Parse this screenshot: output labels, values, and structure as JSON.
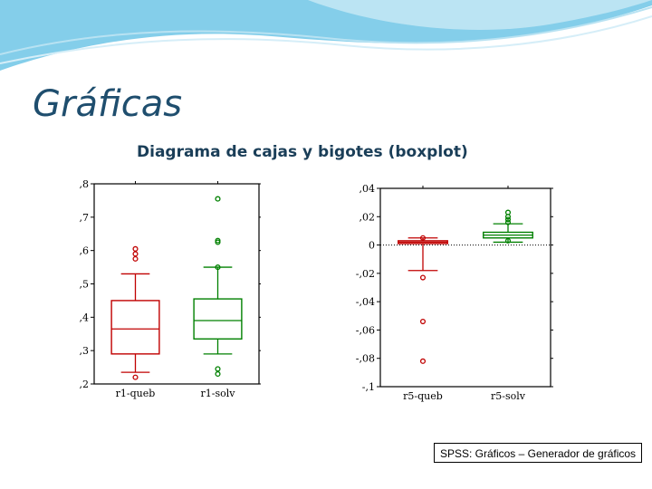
{
  "slide": {
    "title": "Gráficas",
    "subtitle": "Diagrama de cajas y bigotes (boxplot)",
    "caption": "SPSS: Gráficos – Generador de gráficos"
  },
  "colors": {
    "title": "#1f4e6e",
    "decoration": "#6ec6e6",
    "outline_red": "#c00000",
    "outline_green": "#008000"
  },
  "chart_data": [
    {
      "type": "box",
      "title": "",
      "categories": [
        "r1-queb",
        "r1-solv"
      ],
      "ylim": [
        0.2,
        0.8
      ],
      "yticks": [
        ",8",
        ",7",
        ",6",
        ",5",
        ",4",
        ",3",
        ",2"
      ],
      "ytick_values": [
        0.8,
        0.7,
        0.6,
        0.5,
        0.4,
        0.3,
        0.2
      ],
      "boxes": [
        {
          "name": "r1-queb",
          "color": "#c00000",
          "whisker_low": 0.235,
          "q1": 0.29,
          "median": 0.365,
          "q3": 0.45,
          "whisker_high": 0.53,
          "outliers": [
            0.575,
            0.59,
            0.605,
            0.22
          ]
        },
        {
          "name": "r1-solv",
          "color": "#008000",
          "whisker_low": 0.29,
          "q1": 0.335,
          "median": 0.39,
          "q3": 0.455,
          "whisker_high": 0.55,
          "outliers": [
            0.755,
            0.63,
            0.625,
            0.55,
            0.245,
            0.23
          ]
        }
      ]
    },
    {
      "type": "box",
      "title": "",
      "categories": [
        "r5-queb",
        "r5-solv"
      ],
      "ylim": [
        -0.1,
        0.04
      ],
      "yticks": [
        ",04",
        ",02",
        "0",
        "-,02",
        "-,04",
        "-,06",
        "-,08",
        "-,1"
      ],
      "ytick_values": [
        0.04,
        0.02,
        0,
        -0.02,
        -0.04,
        -0.06,
        -0.08,
        -0.1
      ],
      "reference_line": 0,
      "boxes": [
        {
          "name": "r5-queb",
          "color": "#c00000",
          "whisker_low": -0.018,
          "q1": 0.001,
          "median": 0.002,
          "q3": 0.003,
          "whisker_high": 0.005,
          "outliers": [
            0.005,
            -0.023,
            -0.054,
            -0.082
          ]
        },
        {
          "name": "r5-solv",
          "color": "#008000",
          "whisker_low": 0.002,
          "q1": 0.005,
          "median": 0.007,
          "q3": 0.009,
          "whisker_high": 0.015,
          "outliers": [
            0.023,
            0.02,
            0.018,
            0.016,
            0.003
          ]
        }
      ]
    }
  ]
}
